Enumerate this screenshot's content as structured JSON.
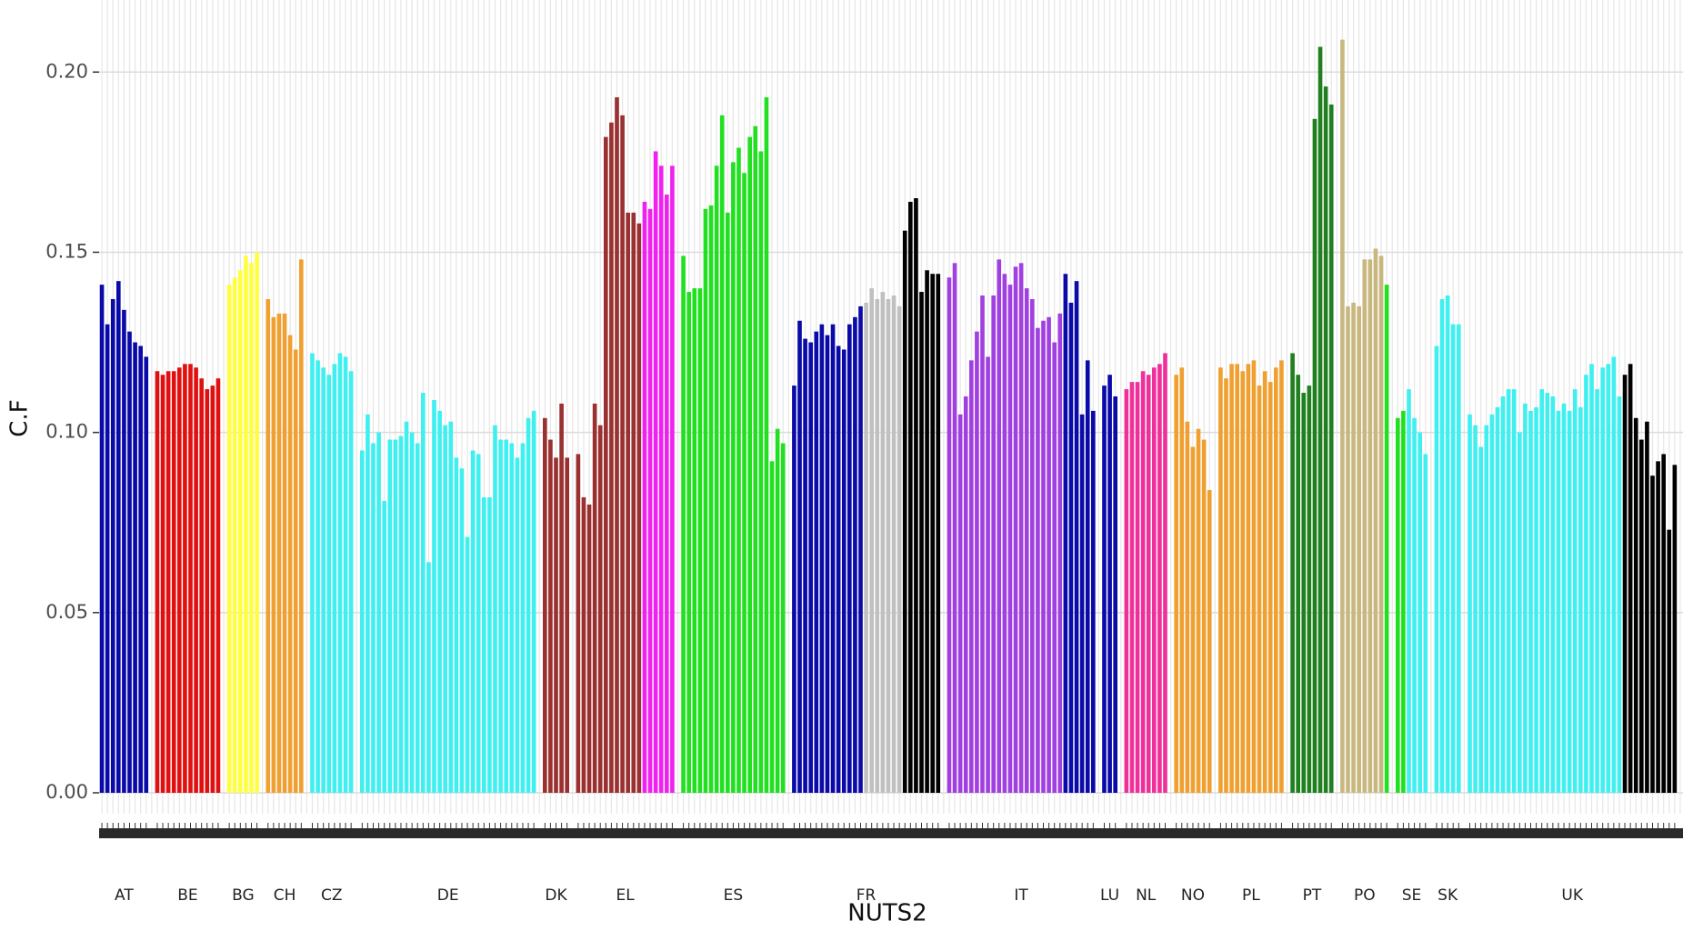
{
  "chart_data": {
    "type": "bar",
    "xlabel": "NUTS2",
    "ylabel": "C.F",
    "ylim": [
      0,
      0.22
    ],
    "grid": true,
    "yticks": [
      {
        "value": 0,
        "label": "0.00"
      },
      {
        "value": 0.05,
        "label": "0.05"
      },
      {
        "value": 0.1,
        "label": "0.10"
      },
      {
        "value": 0.15,
        "label": "0.15"
      },
      {
        "value": 0.2,
        "label": "0.20"
      }
    ],
    "countries": [
      {
        "name": "AT",
        "segments": [
          {
            "color": "#0a0aa8",
            "values": [
              0.141,
              0.13,
              0.137,
              0.142,
              0.134,
              0.128,
              0.125,
              0.124,
              0.121
            ]
          }
        ]
      },
      {
        "name": "BE",
        "segments": [
          {
            "color": "#e01010",
            "values": [
              0.117,
              0.116,
              0.117,
              0.117,
              0.118,
              0.119,
              0.119,
              0.118,
              0.115,
              0.112,
              0.113,
              0.115
            ]
          }
        ]
      },
      {
        "name": "BG",
        "segments": [
          {
            "color": "#ffff40",
            "values": [
              0.141,
              0.143,
              0.145,
              0.149,
              0.147,
              0.15
            ]
          }
        ]
      },
      {
        "name": "CH",
        "segments": [
          {
            "color": "#f0a030",
            "values": [
              0.137,
              0.132,
              0.133,
              0.133,
              0.127,
              0.123,
              0.148
            ]
          }
        ]
      },
      {
        "name": "CZ",
        "segments": [
          {
            "color": "#40f0f0",
            "values": [
              0.122,
              0.12,
              0.118,
              0.116,
              0.119,
              0.122,
              0.121,
              0.117
            ]
          }
        ]
      },
      {
        "name": "DE",
        "segments": [
          {
            "color": "#40f0f0",
            "values": [
              0.095,
              0.105,
              0.097,
              0.1,
              0.081,
              0.098,
              0.098,
              0.099,
              0.103,
              0.1,
              0.097,
              0.111,
              0.064,
              0.109,
              0.106,
              0.102,
              0.103,
              0.093,
              0.09,
              0.071,
              0.095,
              0.094,
              0.082,
              0.082,
              0.102,
              0.098,
              0.098,
              0.097,
              0.093,
              0.097,
              0.104,
              0.106
            ]
          }
        ]
      },
      {
        "name": "DK",
        "segments": [
          {
            "color": "#9a3030",
            "values": [
              0.104,
              0.098,
              0.093,
              0.108,
              0.093
            ]
          }
        ]
      },
      {
        "name": "EL",
        "segments": [
          {
            "color": "#9a3030",
            "values": [
              0.094,
              0.082,
              0.08,
              0.108,
              0.102,
              0.182,
              0.186,
              0.193,
              0.188,
              0.161,
              0.161,
              0.158
            ]
          },
          {
            "color": "#f020f0",
            "values": [
              0.164,
              0.162,
              0.178,
              0.174,
              0.166,
              0.174
            ]
          }
        ]
      },
      {
        "name": "ES",
        "segments": [
          {
            "color": "#20e020",
            "values": [
              0.149,
              0.139,
              0.14,
              0.14,
              0.162,
              0.163,
              0.174,
              0.188,
              0.161,
              0.175,
              0.179,
              0.172,
              0.182,
              0.185,
              0.178,
              0.193
            ]
          },
          {
            "color": "#20e020",
            "values": [
              0.092,
              0.101,
              0.097
            ]
          }
        ]
      },
      {
        "name": "FR",
        "segments": [
          {
            "color": "#0a0aa8",
            "values": [
              0.113,
              0.131,
              0.126,
              0.125,
              0.128,
              0.13,
              0.127,
              0.13,
              0.124,
              0.123,
              0.13,
              0.132,
              0.135
            ]
          },
          {
            "color": "#c0c0c0",
            "values": [
              0.136,
              0.14,
              0.137,
              0.139,
              0.137,
              0.138,
              0.135
            ]
          },
          {
            "color": "#000000",
            "values": [
              0.156,
              0.164,
              0.165,
              0.139,
              0.145,
              0.144,
              0.144
            ]
          }
        ]
      },
      {
        "name": "IT",
        "segments": [
          {
            "color": "#a040e0",
            "values": [
              0.143,
              0.147,
              0.105,
              0.11,
              0.12,
              0.128,
              0.138,
              0.121,
              0.138,
              0.148,
              0.144,
              0.141,
              0.146,
              0.147,
              0.14,
              0.137,
              0.129,
              0.131,
              0.132,
              0.125,
              0.133
            ]
          },
          {
            "color": "#0a0aa8",
            "values": [
              0.144,
              0.136,
              0.142,
              0.105,
              0.12,
              0.106
            ]
          }
        ]
      },
      {
        "name": "LU",
        "segments": [
          {
            "color": "#0a0aa8",
            "values": [
              0.113,
              0.116,
              0.11
            ]
          }
        ]
      },
      {
        "name": "NL",
        "segments": [
          {
            "color": "#f0309a",
            "values": [
              0.112,
              0.114,
              0.114,
              0.117,
              0.116,
              0.118,
              0.119,
              0.122
            ]
          }
        ]
      },
      {
        "name": "NO",
        "segments": [
          {
            "color": "#f0a030",
            "values": [
              0.116,
              0.118,
              0.103,
              0.096,
              0.101,
              0.098,
              0.084
            ]
          }
        ]
      },
      {
        "name": "PL",
        "segments": [
          {
            "color": "#f0a030",
            "values": [
              0.118,
              0.115,
              0.119,
              0.119,
              0.117,
              0.119,
              0.12,
              0.113,
              0.117,
              0.114,
              0.118,
              0.12
            ]
          }
        ]
      },
      {
        "name": "PT",
        "segments": [
          {
            "color": "#208020",
            "values": [
              0.122,
              0.116,
              0.111,
              0.113,
              0.187,
              0.207,
              0.196,
              0.191
            ]
          }
        ]
      },
      {
        "name": "PO",
        "segments": [
          {
            "color": "#c8b880",
            "values": [
              0.209,
              0.135,
              0.136,
              0.135,
              0.148,
              0.148,
              0.151,
              0.149
            ]
          },
          {
            "color": "#20e020",
            "values": [
              0.141
            ]
          }
        ]
      },
      {
        "name": "SE",
        "segments": [
          {
            "color": "#20e020",
            "values": [
              0.104,
              0.106
            ]
          },
          {
            "color": "#40f0f0",
            "values": [
              0.112,
              0.104,
              0.1,
              0.094
            ]
          }
        ]
      },
      {
        "name": "SK",
        "segments": [
          {
            "color": "#40f0f0",
            "values": [
              0.124,
              0.137,
              0.138,
              0.13,
              0.13
            ]
          }
        ]
      },
      {
        "name": "UK",
        "segments": [
          {
            "color": "#40f0f0",
            "values": [
              0.105,
              0.102,
              0.096,
              0.102,
              0.105,
              0.107,
              0.11,
              0.112,
              0.112,
              0.1,
              0.108,
              0.106,
              0.107,
              0.112,
              0.111,
              0.11,
              0.106,
              0.108,
              0.106,
              0.112,
              0.107,
              0.116,
              0.119
            ]
          },
          {
            "color": "#40f0f0",
            "values": [
              0.112,
              0.118,
              0.119,
              0.121,
              0.11
            ]
          },
          {
            "color": "#000000",
            "values": [
              0.116,
              0.119,
              0.104,
              0.098,
              0.103,
              0.088,
              0.092,
              0.094,
              0.073,
              0.091
            ]
          }
        ]
      }
    ]
  }
}
